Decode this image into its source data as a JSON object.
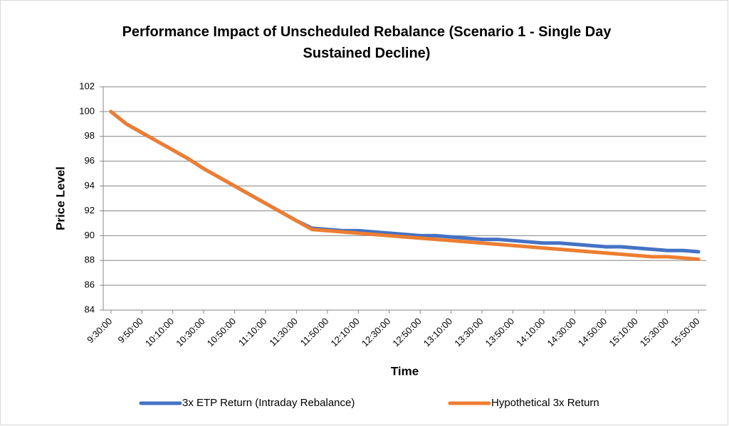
{
  "chart_data": {
    "type": "line",
    "title": "Performance Impact of Unscheduled Rebalance (Scenario 1 - Single Day Sustained Decline)",
    "x_label": "Time",
    "y_label": "Price Level",
    "categories": [
      "9:30:00",
      null,
      "9:50:00",
      null,
      "10:10:00",
      null,
      "10:30:00",
      null,
      "10:50:00",
      null,
      "11:10:00",
      null,
      "11:30:00",
      null,
      "11:50:00",
      null,
      "12:10:00",
      null,
      "12:30:00",
      null,
      "12:50:00",
      null,
      "13:10:00",
      null,
      "13:30:00",
      null,
      "13:50:00",
      null,
      "14:10:00",
      null,
      "14:30:00",
      null,
      "14:50:00",
      null,
      "15:10:00",
      null,
      "15:30:00",
      null,
      "15:50:00"
    ],
    "series": [
      {
        "name": "3x ETP Return (Intraday Rebalance)",
        "color": "#4472c4",
        "values": [
          100,
          99.0,
          98.3,
          97.6,
          96.9,
          96.2,
          95.4,
          94.7,
          94.0,
          93.3,
          92.6,
          91.9,
          91.2,
          90.6,
          90.5,
          90.4,
          90.4,
          90.3,
          90.2,
          90.1,
          90.0,
          90.0,
          89.9,
          89.8,
          89.7,
          89.7,
          89.6,
          89.5,
          89.4,
          89.4,
          89.3,
          89.2,
          89.1,
          89.1,
          89.0,
          88.9,
          88.8,
          88.8,
          88.7
        ]
      },
      {
        "name": "Hypothetical 3x Return",
        "color": "#ed7d31",
        "values": [
          100,
          99.0,
          98.3,
          97.6,
          96.9,
          96.2,
          95.4,
          94.7,
          94.0,
          93.3,
          92.6,
          91.9,
          91.2,
          90.5,
          90.4,
          90.3,
          90.2,
          90.1,
          90.0,
          89.9,
          89.8,
          89.7,
          89.6,
          89.5,
          89.4,
          89.3,
          89.2,
          89.1,
          89.0,
          88.9,
          88.8,
          88.7,
          88.6,
          88.5,
          88.4,
          88.3,
          88.3,
          88.2,
          88.1
        ]
      }
    ],
    "ylim": [
      84,
      102
    ],
    "yticks": [
      84,
      86,
      88,
      90,
      92,
      94,
      96,
      98,
      100,
      102
    ],
    "grid": true,
    "legend": "bottom"
  }
}
